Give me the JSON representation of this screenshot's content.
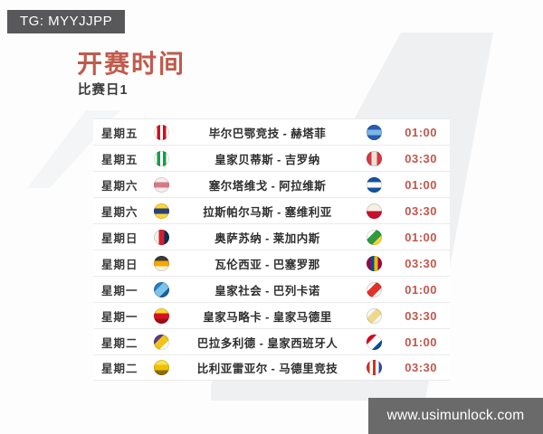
{
  "header": {
    "tg_badge": "TG: MYYJJPP",
    "title": "开赛时间",
    "subtitle": "比赛日1"
  },
  "footer": {
    "website": "www.usimunlock.com"
  },
  "colors": {
    "accent_red": "#c05a4c",
    "time_red": "#c2574c",
    "badge_bg": "#58585a",
    "banner_bg": "#6a6a6b",
    "watermark": "#eff0f1",
    "row_bg": "#ffffff",
    "divider": "#ebebeb"
  },
  "table": {
    "rows": [
      {
        "day": "星期五",
        "match": "毕尔巴鄂竞技 - 赫塔菲",
        "time": "01:00",
        "home": {
          "name": "athletic-bilbao-logo",
          "dir": "90deg",
          "colors": [
            "#ffffff",
            "#cf1020",
            "#ffffff",
            "#cf1020",
            "#ffffff"
          ]
        },
        "away": {
          "name": "getafe-logo",
          "dir": "180deg",
          "colors": [
            "#2a5cad",
            "#7db5e8",
            "#2a5cad"
          ]
        }
      },
      {
        "day": "星期五",
        "match": "皇家贝蒂斯 - 吉罗纳",
        "time": "03:30",
        "home": {
          "name": "real-betis-logo",
          "dir": "90deg",
          "colors": [
            "#ffffff",
            "#159f49",
            "#ffffff",
            "#159f49",
            "#ffffff"
          ]
        },
        "away": {
          "name": "girona-logo",
          "dir": "90deg",
          "colors": [
            "#d63a44",
            "#ece2d4",
            "#d63a44"
          ]
        }
      },
      {
        "day": "星期六",
        "match": "塞尔塔维戈 - 阿拉维斯",
        "time": "01:00",
        "home": {
          "name": "celta-vigo-logo",
          "dir": "180deg",
          "colors": [
            "#f6eef0",
            "#d77a86",
            "#f6eef0"
          ]
        },
        "away": {
          "name": "alaves-logo",
          "dir": "180deg",
          "colors": [
            "#1553a0",
            "#ffffff",
            "#1553a0"
          ]
        }
      },
      {
        "day": "星期六",
        "match": "拉斯帕尔马斯 - 塞维利亚",
        "time": "03:30",
        "home": {
          "name": "las-palmas-logo",
          "dir": "180deg",
          "colors": [
            "#ffd633",
            "#25427a",
            "#ffd633"
          ]
        },
        "away": {
          "name": "sevilla-logo",
          "dir": "180deg",
          "colors": [
            "#f3f0e8",
            "#c8102e"
          ]
        }
      },
      {
        "day": "星期日",
        "match": "奥萨苏纳 - 莱加内斯",
        "time": "01:00",
        "home": {
          "name": "osasuna-logo",
          "dir": "90deg",
          "colors": [
            "#f5f2ec",
            "#d31e2a",
            "#0b2d57"
          ]
        },
        "away": {
          "name": "leganes-logo",
          "dir": "135deg",
          "colors": [
            "#ffffff",
            "#2e9b43",
            "#ffd633"
          ]
        }
      },
      {
        "day": "星期日",
        "match": "瓦伦西亚 - 巴塞罗那",
        "time": "03:30",
        "home": {
          "name": "valencia-logo",
          "dir": "180deg",
          "colors": [
            "#3a3a3a",
            "#f6a800",
            "#faf3e0"
          ]
        },
        "away": {
          "name": "barcelona-logo",
          "dir": "90deg",
          "colors": [
            "#a50044",
            "#004d98",
            "#edbb00",
            "#a50044"
          ]
        }
      },
      {
        "day": "星期一",
        "match": "皇家社会 - 巴列卡诺",
        "time": "01:00",
        "home": {
          "name": "real-sociedad-logo",
          "dir": "135deg",
          "colors": [
            "#2a7fc1",
            "#7fc3e8",
            "#1b5f9e"
          ]
        },
        "away": {
          "name": "rayo-vallecano-logo",
          "dir": "135deg",
          "colors": [
            "#f7f7f7",
            "#e53027",
            "#f7f7f7"
          ]
        }
      },
      {
        "day": "星期一",
        "match": "皇家马略卡 - 皇家马德里",
        "time": "03:30",
        "home": {
          "name": "mallorca-logo",
          "dir": "180deg",
          "colors": [
            "#ffd633",
            "#d5121e",
            "#a00d16"
          ]
        },
        "away": {
          "name": "real-madrid-logo",
          "dir": "135deg",
          "colors": [
            "#f9f9f9",
            "#f0d98c",
            "#f9f9f9"
          ]
        }
      },
      {
        "day": "星期二",
        "match": "巴拉多利德 - 皇家西班牙人",
        "time": "01:00",
        "home": {
          "name": "valladolid-logo",
          "dir": "135deg",
          "colors": [
            "#5c3b8a",
            "#f0c419",
            "#ffffff"
          ]
        },
        "away": {
          "name": "espanyol-logo",
          "dir": "135deg",
          "colors": [
            "#e2001a",
            "#ffffff",
            "#00529f"
          ]
        }
      },
      {
        "day": "星期二",
        "match": "比利亚雷亚尔 - 马德里竞技",
        "time": "03:30",
        "home": {
          "name": "villarreal-logo",
          "dir": "180deg",
          "colors": [
            "#f7e34d",
            "#efc000",
            "#8a6d00"
          ]
        },
        "away": {
          "name": "atletico-madrid-logo",
          "dir": "90deg",
          "colors": [
            "#cb3524",
            "#ffffff",
            "#cb3524",
            "#ffffff",
            "#2b4c9b"
          ]
        }
      }
    ]
  }
}
